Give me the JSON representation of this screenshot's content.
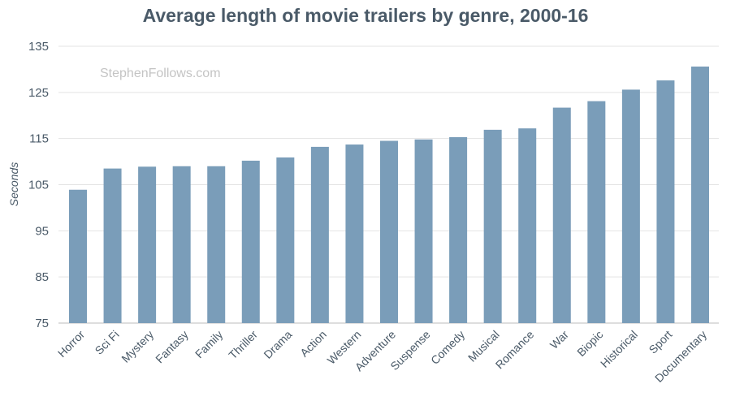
{
  "chart_data": {
    "type": "bar",
    "title": "Average length of movie trailers by genre, 2000-16",
    "xlabel": "",
    "ylabel": "Seconds",
    "ylim": [
      75,
      135
    ],
    "yticks": [
      75,
      85,
      95,
      105,
      115,
      125,
      135
    ],
    "grid": true,
    "watermark": "StephenFollows.com",
    "bar_color": "#7a9db9",
    "categories": [
      "Horror",
      "Sci Fi",
      "Mystery",
      "Fantasy",
      "Family",
      "Thriller",
      "Drama",
      "Action",
      "Western",
      "Adventure",
      "Suspense",
      "Comedy",
      "Musical",
      "Romance",
      "War",
      "Biopic",
      "Historical",
      "Sport",
      "Documentary"
    ],
    "values": [
      103.9,
      108.5,
      108.9,
      109.0,
      109.0,
      110.2,
      110.9,
      113.2,
      113.7,
      114.5,
      114.8,
      115.3,
      116.9,
      117.2,
      121.7,
      123.1,
      125.6,
      127.6,
      130.6
    ]
  }
}
